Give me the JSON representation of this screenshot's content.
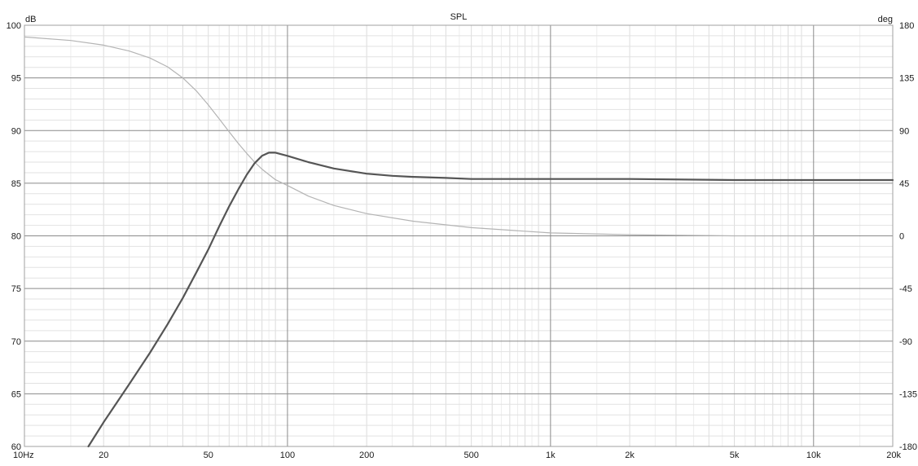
{
  "chart_data": {
    "type": "line",
    "title": "SPL",
    "ylabel_left": "dB",
    "ylabel_right": "deg",
    "x_scale": "log",
    "xlim": [
      10,
      20000
    ],
    "ylim_left": [
      60,
      100
    ],
    "ylim_right": [
      -180,
      180
    ],
    "grid": true,
    "x_tick_labels": [
      {
        "value": 10,
        "label": "10Hz"
      },
      {
        "value": 20,
        "label": "20"
      },
      {
        "value": 50,
        "label": "50"
      },
      {
        "value": 100,
        "label": "100"
      },
      {
        "value": 200,
        "label": "200"
      },
      {
        "value": 500,
        "label": "500"
      },
      {
        "value": 1000,
        "label": "1k"
      },
      {
        "value": 2000,
        "label": "2k"
      },
      {
        "value": 5000,
        "label": "5k"
      },
      {
        "value": 10000,
        "label": "10k"
      },
      {
        "value": 20000,
        "label": "20k"
      }
    ],
    "y_left_ticks": [
      {
        "value": 100,
        "label": "100"
      },
      {
        "value": 95,
        "label": "95"
      },
      {
        "value": 90,
        "label": "90"
      },
      {
        "value": 85,
        "label": "85"
      },
      {
        "value": 80,
        "label": "80"
      },
      {
        "value": 75,
        "label": "75"
      },
      {
        "value": 70,
        "label": "70"
      },
      {
        "value": 65,
        "label": "65"
      },
      {
        "value": 60,
        "label": "60"
      }
    ],
    "y_right_ticks": [
      {
        "value": 180,
        "label": "180"
      },
      {
        "value": 135,
        "label": "135"
      },
      {
        "value": 90,
        "label": "90"
      },
      {
        "value": 45,
        "label": "45"
      },
      {
        "value": 0,
        "label": "0"
      },
      {
        "value": -45,
        "label": "-45"
      },
      {
        "value": -90,
        "label": "-90"
      },
      {
        "value": -135,
        "label": "-135"
      },
      {
        "value": -180,
        "label": "-180"
      }
    ],
    "series": [
      {
        "axis": "left",
        "color": "#555555",
        "x": [
          17.5,
          20,
          25,
          30,
          35,
          40,
          45,
          50,
          55,
          60,
          65,
          70,
          75,
          80,
          85,
          90,
          100,
          120,
          150,
          200,
          250,
          300,
          400,
          500,
          700,
          1000,
          2000,
          5000,
          10000,
          20000
        ],
        "y": [
          60.0,
          62.3,
          65.9,
          68.9,
          71.6,
          74.1,
          76.5,
          78.7,
          80.9,
          82.8,
          84.4,
          85.8,
          86.9,
          87.6,
          87.9,
          87.9,
          87.6,
          87.0,
          86.4,
          85.9,
          85.7,
          85.6,
          85.5,
          85.4,
          85.4,
          85.4,
          85.4,
          85.3,
          85.3,
          85.3
        ]
      },
      {
        "axis": "right",
        "color": "#b4b4b4",
        "x": [
          10,
          15,
          20,
          25,
          30,
          35,
          40,
          45,
          50,
          55,
          60,
          65,
          70,
          75,
          80,
          90,
          100,
          120,
          150,
          200,
          300,
          500,
          1000,
          2000,
          5000,
          10000
        ],
        "y": [
          170.0,
          167.0,
          163.0,
          158.0,
          152.0,
          144.5,
          135.0,
          124.0,
          112.0,
          100.0,
          89.0,
          79.0,
          70.5,
          63.0,
          57.0,
          48.0,
          43.0,
          34.0,
          26.0,
          19.0,
          12.5,
          7.0,
          2.5,
          1.0,
          0.0,
          0.0
        ]
      }
    ]
  }
}
